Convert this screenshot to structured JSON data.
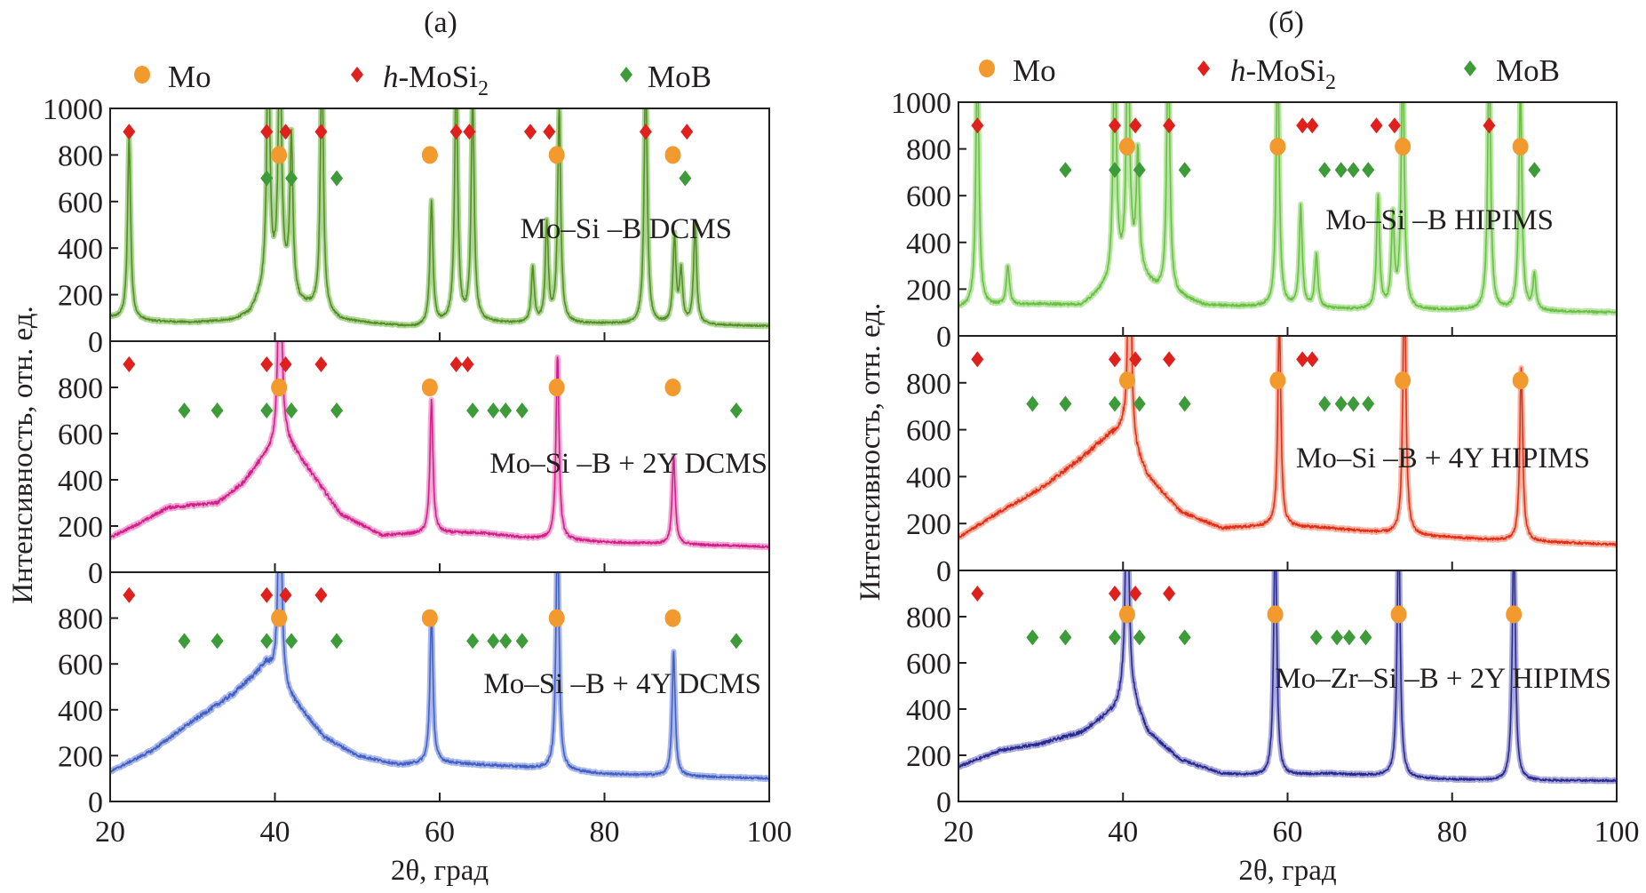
{
  "chart_data": [
    {
      "type": "line",
      "title": "(а)",
      "xlabel": "2θ, град",
      "ylabel": "Интенсивность, отн. ед.",
      "xlim": [
        20,
        100
      ],
      "xticks": [
        20,
        40,
        60,
        80,
        100
      ],
      "legend": [
        {
          "key": "Mo",
          "italic": "",
          "name": "Mo",
          "sub": "",
          "color": "#f39a2e",
          "shape": "circle"
        },
        {
          "key": "MoSi2",
          "italic": "h",
          "name": "-MoSi",
          "sub": "2",
          "color": "#e0201c",
          "shape": "diamond"
        },
        {
          "key": "MoB",
          "italic": "",
          "name": "MoB",
          "sub": "",
          "color": "#3d9b3a",
          "shape": "diamond"
        }
      ],
      "legend_position": "top",
      "marker_levels": {
        "MoSi2": 900,
        "Mo": 800,
        "MoB": 700
      },
      "subplots": [
        {
          "label": "Mo–Si –B DCMS",
          "color": "#5b8a2a",
          "halo": "#a8d890",
          "ylim": [
            0,
            1000
          ],
          "yticks": [
            0,
            200,
            400,
            600,
            800,
            1000
          ],
          "baseline": [
            [
              20,
              100
            ],
            [
              25,
              85
            ],
            [
              30,
              80
            ],
            [
              35,
              90
            ],
            [
              37,
              120
            ],
            [
              39,
              240
            ],
            [
              41,
              260
            ],
            [
              43,
              160
            ],
            [
              45,
              140
            ],
            [
              48,
              90
            ],
            [
              52,
              75
            ],
            [
              57,
              60
            ],
            [
              62,
              80
            ],
            [
              66,
              80
            ],
            [
              70,
              75
            ],
            [
              80,
              75
            ],
            [
              90,
              70
            ],
            [
              100,
              65
            ]
          ],
          "peaks": [
            [
              22.3,
              780
            ],
            [
              39.2,
              1100
            ],
            [
              40.6,
              1100
            ],
            [
              42,
              650
            ],
            [
              45.7,
              1100
            ],
            [
              59,
              530
            ],
            [
              62,
              1100
            ],
            [
              64,
              970
            ],
            [
              71.3,
              230
            ],
            [
              73,
              420
            ],
            [
              74.5,
              920
            ],
            [
              85,
              1100
            ],
            [
              88.5,
              370
            ],
            [
              89.3,
              220
            ],
            [
              91,
              420
            ]
          ],
          "markers": {
            "MoSi2": [
              22.3,
              39,
              41.3,
              45.6,
              62,
              63.6,
              71,
              73.3,
              85,
              90
            ],
            "Mo": [
              40.5,
              58.8,
              74.2,
              88.3
            ],
            "MoB": [
              39,
              42,
              47.5,
              89.8
            ]
          }
        },
        {
          "label": "Mo–Si –B + 2Y DCMS",
          "color": "#d0208a",
          "halo": "#f2a8d4",
          "ylim": [
            0,
            1000
          ],
          "yticks": [
            0,
            200,
            400,
            600,
            800
          ],
          "baseline": [
            [
              20,
              150
            ],
            [
              24,
              220
            ],
            [
              27,
              280
            ],
            [
              33,
              300
            ],
            [
              36,
              380
            ],
            [
              38,
              470
            ],
            [
              41,
              590
            ],
            [
              44,
              450
            ],
            [
              48,
              250
            ],
            [
              53,
              160
            ],
            [
              60,
              170
            ],
            [
              65,
              170
            ],
            [
              70,
              150
            ],
            [
              80,
              130
            ],
            [
              100,
              110
            ]
          ],
          "peaks": [
            [
              40.6,
              1100
            ],
            [
              59,
              570
            ],
            [
              74.3,
              800
            ],
            [
              88.4,
              380
            ]
          ],
          "markers": {
            "MoSi2": [
              22.3,
              39,
              41.3,
              45.6,
              62,
              63.4
            ],
            "Mo": [
              40.5,
              58.8,
              74.2,
              88.3
            ],
            "MoB": [
              29,
              33,
              39,
              42,
              47.5,
              64,
              66.5,
              68,
              70,
              96
            ]
          }
        },
        {
          "label": "Mo–Si –B + 4Y DCMS",
          "color": "#4560c0",
          "halo": "#a8b8ec",
          "ylim": [
            0,
            1000
          ],
          "yticks": [
            0,
            200,
            400,
            600,
            800
          ],
          "baseline": [
            [
              20,
              130
            ],
            [
              25,
              220
            ],
            [
              30,
              350
            ],
            [
              35,
              470
            ],
            [
              39,
              600
            ],
            [
              42,
              450
            ],
            [
              46,
              280
            ],
            [
              50,
              200
            ],
            [
              55,
              160
            ],
            [
              60,
              170
            ],
            [
              70,
              150
            ],
            [
              80,
              120
            ],
            [
              100,
              100
            ]
          ],
          "peaks": [
            [
              40.6,
              1100
            ],
            [
              59,
              650
            ],
            [
              74.3,
              1100
            ],
            [
              88.4,
              540
            ]
          ],
          "markers": {
            "MoSi2": [
              22.3,
              39,
              41.3,
              45.6
            ],
            "Mo": [
              40.5,
              58.8,
              74.2,
              88.3
            ],
            "MoB": [
              29,
              33,
              39,
              42,
              47.5,
              64,
              66.5,
              68,
              70,
              96
            ]
          }
        }
      ]
    },
    {
      "type": "line",
      "title": "(б)",
      "xlabel": "2θ, град",
      "ylabel": "Интенсивность, отн. ед.",
      "xlim": [
        20,
        100
      ],
      "xticks": [
        20,
        40,
        60,
        80,
        100
      ],
      "legend": [
        {
          "key": "Mo",
          "italic": "",
          "name": "Mo",
          "sub": "",
          "color": "#f39a2e",
          "shape": "circle"
        },
        {
          "key": "MoSi2",
          "italic": "h",
          "name": "-MoSi",
          "sub": "2",
          "color": "#e0201c",
          "shape": "diamond"
        },
        {
          "key": "MoB",
          "italic": "",
          "name": "MoB",
          "sub": "",
          "color": "#3d9b3a",
          "shape": "diamond"
        }
      ],
      "legend_position": "top",
      "marker_levels": {
        "MoSi2": 900,
        "Mo": 810,
        "MoB": 710
      },
      "subplots": [
        {
          "label": "Mo–Si –B HIPIMS",
          "color": "#6cbf45",
          "halo": "#b8e6a4",
          "ylim": [
            0,
            1000
          ],
          "yticks": [
            0,
            200,
            400,
            600,
            800,
            1000
          ],
          "baseline": [
            [
              20,
              120
            ],
            [
              25,
              130
            ],
            [
              30,
              135
            ],
            [
              35,
              130
            ],
            [
              38,
              210
            ],
            [
              41,
              300
            ],
            [
              44,
              200
            ],
            [
              50,
              130
            ],
            [
              60,
              120
            ],
            [
              70,
              110
            ],
            [
              80,
              110
            ],
            [
              100,
              100
            ]
          ],
          "peaks": [
            [
              22.3,
              1100
            ],
            [
              26,
              170
            ],
            [
              39,
              1100
            ],
            [
              40.6,
              1100
            ],
            [
              41.8,
              500
            ],
            [
              45.5,
              1100
            ],
            [
              58.8,
              1100
            ],
            [
              61.6,
              430
            ],
            [
              63.5,
              230
            ],
            [
              71,
              480
            ],
            [
              72.8,
              380
            ],
            [
              74,
              1100
            ],
            [
              84.5,
              1100
            ],
            [
              88.3,
              950
            ],
            [
              90,
              150
            ]
          ],
          "markers": {
            "MoSi2": [
              22.3,
              39,
              41.5,
              45.6,
              61.8,
              63,
              70.8,
              73,
              84.5
            ],
            "Mo": [
              40.5,
              58.8,
              74,
              88.3
            ],
            "MoB": [
              33,
              39,
              42,
              47.5,
              64.5,
              66.5,
              68,
              69.8,
              90
            ]
          }
        },
        {
          "label": "Mo–Si –B + 4Y HIPIMS",
          "color": "#e0301c",
          "halo": "#f8b4a0",
          "ylim": [
            0,
            1000
          ],
          "yticks": [
            0,
            200,
            400,
            600,
            800
          ],
          "baseline": [
            [
              20,
              140
            ],
            [
              25,
              250
            ],
            [
              30,
              350
            ],
            [
              35,
              480
            ],
            [
              38,
              570
            ],
            [
              40,
              600
            ],
            [
              43,
              400
            ],
            [
              47,
              250
            ],
            [
              52,
              180
            ],
            [
              58,
              190
            ],
            [
              65,
              180
            ],
            [
              75,
              150
            ],
            [
              85,
              130
            ],
            [
              100,
              110
            ]
          ],
          "peaks": [
            [
              40.8,
              1100
            ],
            [
              59,
              880
            ],
            [
              74.2,
              1100
            ],
            [
              88.4,
              730
            ]
          ],
          "markers": {
            "MoSi2": [
              22.3,
              39,
              41.5,
              45.6,
              61.8,
              63
            ],
            "Mo": [
              40.5,
              58.8,
              74,
              88.3
            ],
            "MoB": [
              29,
              33,
              39,
              42,
              47.5,
              64.5,
              66.5,
              68,
              69.8
            ]
          }
        },
        {
          "label": "Mo–Zr–Si –B + 2Y HIPIMS",
          "color": "#2a2a8e",
          "halo": "#a8a8dc",
          "ylim": [
            0,
            1000
          ],
          "yticks": [
            0,
            200,
            400,
            600,
            800
          ],
          "baseline": [
            [
              20,
              150
            ],
            [
              25,
              220
            ],
            [
              30,
              250
            ],
            [
              35,
              300
            ],
            [
              39,
              400
            ],
            [
              40.6,
              500
            ],
            [
              43,
              300
            ],
            [
              47,
              180
            ],
            [
              52,
              120
            ],
            [
              58,
              110
            ],
            [
              65,
              120
            ],
            [
              72,
              110
            ],
            [
              75,
              100
            ],
            [
              85,
              90
            ],
            [
              100,
              90
            ]
          ],
          "peaks": [
            [
              40.5,
              1100
            ],
            [
              58.5,
              1100
            ],
            [
              73.5,
              1100
            ],
            [
              87.5,
              1100
            ]
          ],
          "markers": {
            "MoSi2": [
              22.3,
              39,
              41.5,
              45.6
            ],
            "Mo": [
              40.5,
              58.5,
              73.5,
              87.5
            ],
            "MoB": [
              29,
              33,
              39,
              42,
              47.5,
              63.5,
              66,
              67.5,
              69.5
            ]
          }
        }
      ]
    }
  ]
}
